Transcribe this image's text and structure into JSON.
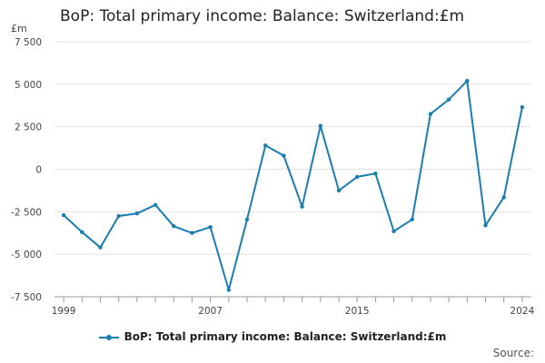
{
  "chart_data": {
    "type": "line",
    "title": "BoP: Total primary income: Balance: Switzerland:£m",
    "y_unit": "£m",
    "xlabel": "",
    "ylabel": "",
    "x": [
      1999,
      2000,
      2001,
      2002,
      2003,
      2004,
      2005,
      2006,
      2007,
      2008,
      2009,
      2010,
      2011,
      2012,
      2013,
      2014,
      2015,
      2016,
      2017,
      2018,
      2019,
      2020,
      2021,
      2022,
      2023,
      2024
    ],
    "series": [
      {
        "name": "BoP: Total primary income: Balance: Switzerland:£m",
        "color": "#1a7db1",
        "values": [
          -2700,
          -3700,
          -4600,
          -2750,
          -2600,
          -2100,
          -3350,
          -3750,
          -3400,
          -7100,
          -2950,
          1400,
          800,
          -2200,
          2550,
          -1250,
          -450,
          -250,
          -3650,
          -2950,
          3250,
          4100,
          5200,
          -3300,
          -1650,
          3650
        ]
      }
    ],
    "ylim": [
      -7500,
      7500
    ],
    "y_ticks": [
      -7500,
      -5000,
      -2500,
      0,
      2500,
      5000,
      7500
    ],
    "y_tick_labels": [
      "-7 500",
      "-5 000",
      "-2 500",
      "0",
      "2 500",
      "5 000",
      "7 500"
    ],
    "x_tick_labels": [
      "1999",
      "2007",
      "2015",
      "2024"
    ],
    "x_tick_label_years": [
      1999,
      2007,
      2015,
      2024
    ],
    "grid": "horizontal",
    "legend_placement": "bottom-center",
    "source_label": "Source:"
  }
}
